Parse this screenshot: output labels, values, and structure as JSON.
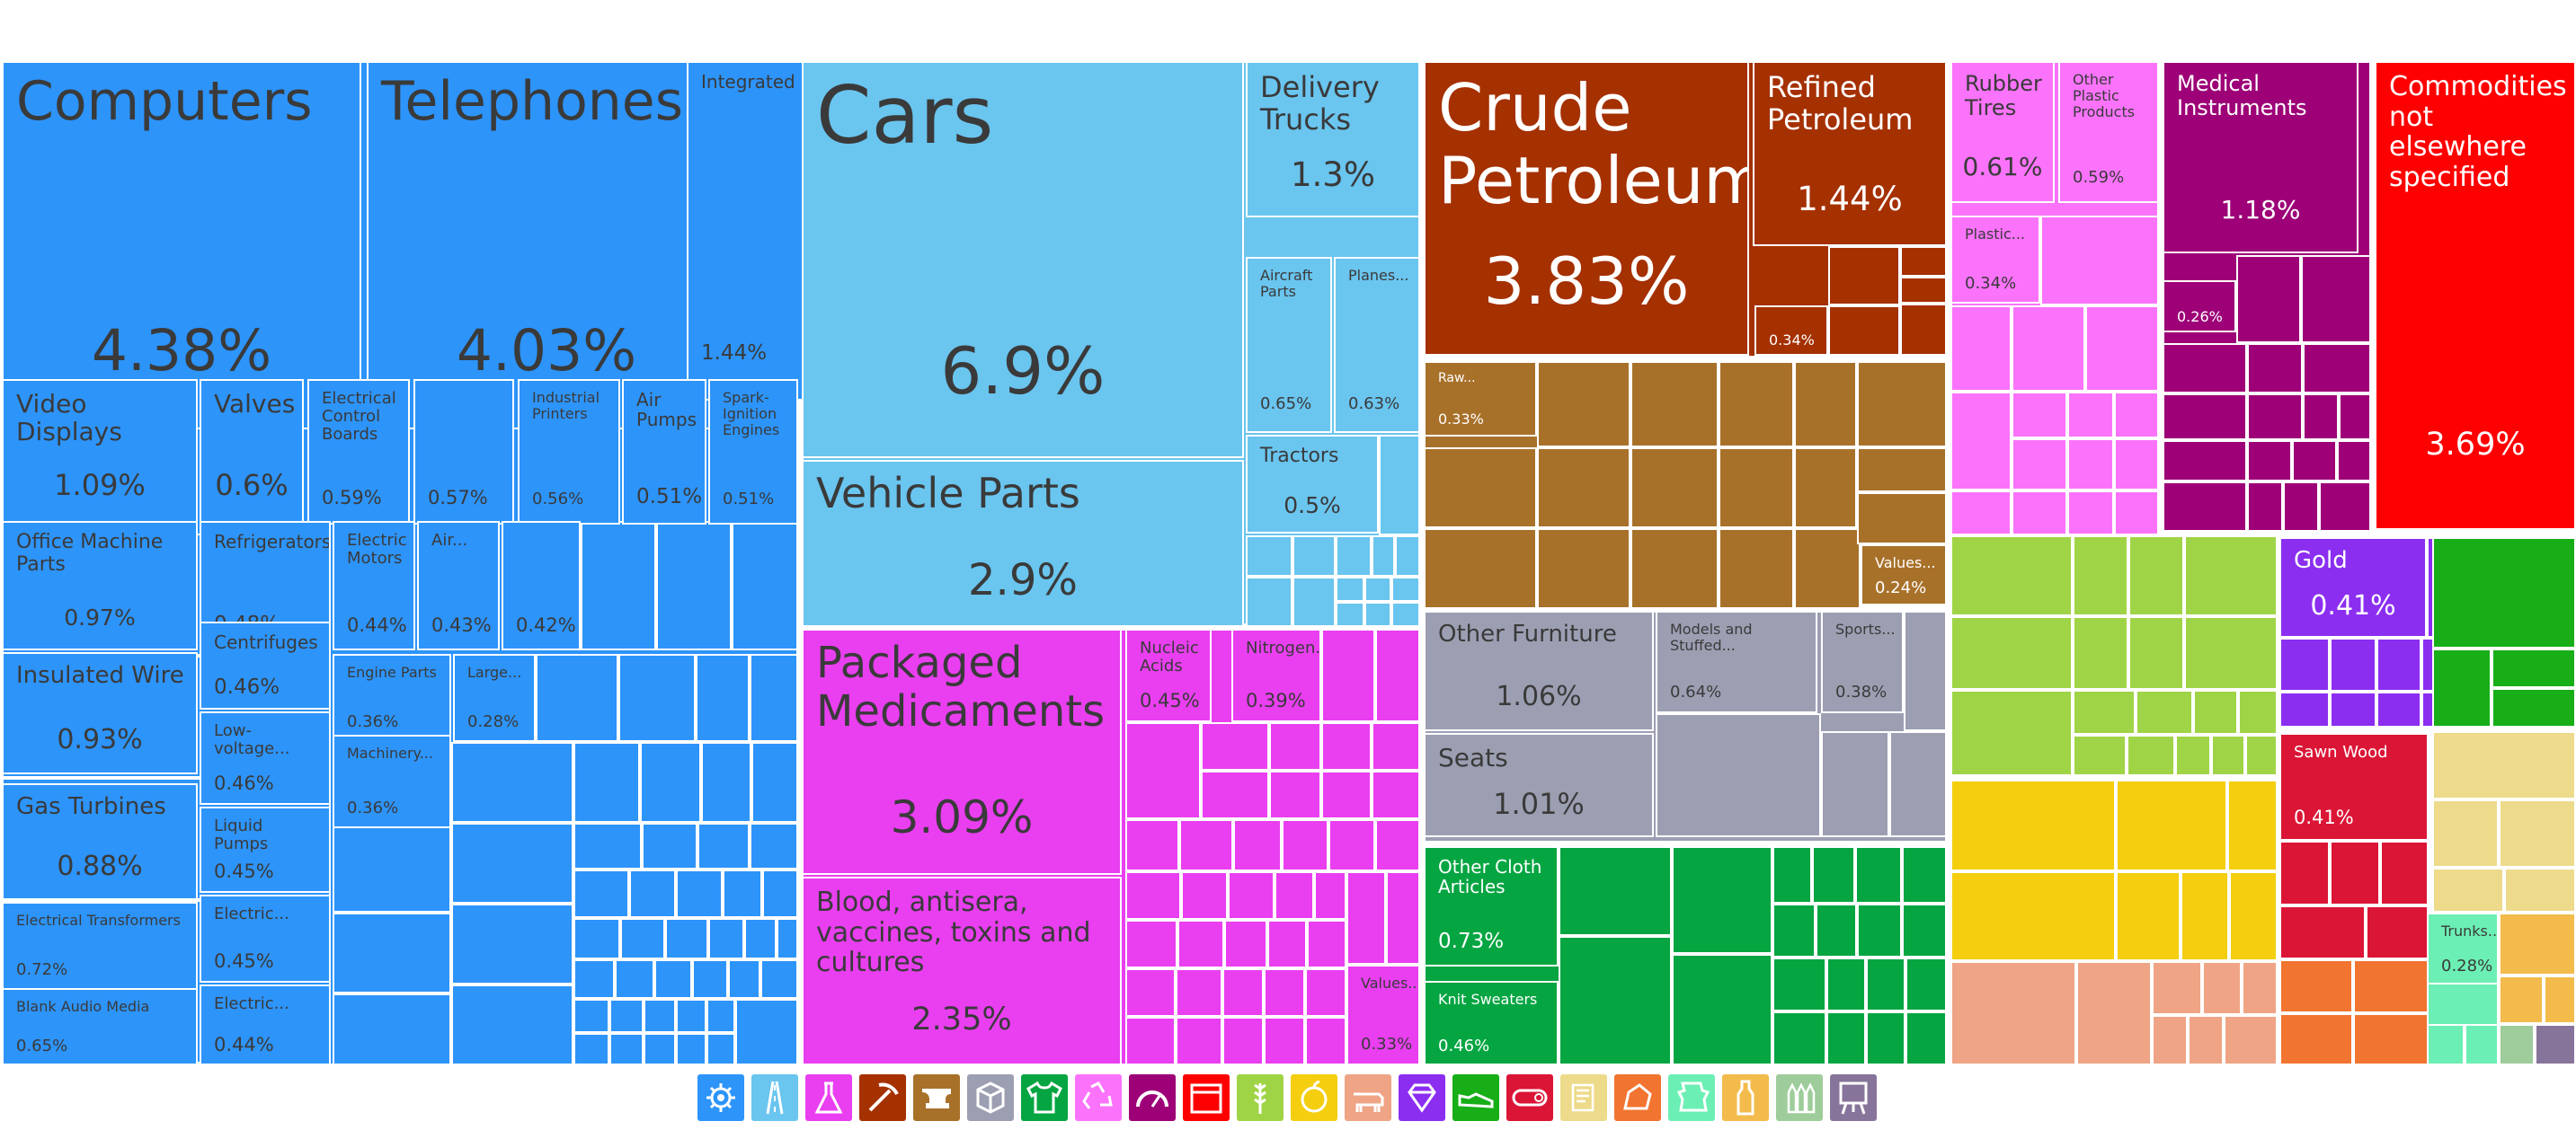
{
  "chart_data": {
    "type": "treemap",
    "unit": "%",
    "title": "",
    "sections": [
      {
        "key": "machines",
        "color": "#2d94fa",
        "icon": "gear-icon",
        "items": [
          {
            "label": "Computers",
            "value": 4.38
          },
          {
            "label": "Telephones",
            "value": 4.03
          },
          {
            "label": "Integrated Circuits",
            "value": 1.44
          },
          {
            "label": "Video Displays",
            "value": 1.09
          },
          {
            "label": "Valves",
            "value": 0.6
          },
          {
            "label": "Electrical Control Boards",
            "value": 0.59
          },
          {
            "label": "",
            "value": 0.57
          },
          {
            "label": "Industrial Printers",
            "value": 0.56
          },
          {
            "label": "Air Pumps",
            "value": 0.51
          },
          {
            "label": "Spark-Ignition Engines",
            "value": 0.51
          },
          {
            "label": "Office Machine Parts",
            "value": 0.97
          },
          {
            "label": "Refrigerators",
            "value": 0.48
          },
          {
            "label": "Electric Motors",
            "value": 0.44
          },
          {
            "label": "Air...",
            "value": 0.43
          },
          {
            "label": "",
            "value": 0.42
          },
          {
            "label": "Insulated Wire",
            "value": 0.93
          },
          {
            "label": "Centrifuges",
            "value": 0.46
          },
          {
            "label": "Engine Parts",
            "value": 0.36
          },
          {
            "label": "Large...",
            "value": 0.28
          },
          {
            "label": "Gas Turbines",
            "value": 0.88
          },
          {
            "label": "Low-voltage...",
            "value": 0.46
          },
          {
            "label": "Machinery...",
            "value": 0.36
          },
          {
            "label": "Liquid Pumps",
            "value": 0.45
          },
          {
            "label": "Electrical Transformers",
            "value": 0.72
          },
          {
            "label": "Electric...",
            "value": 0.45
          },
          {
            "label": "Blank Audio Media",
            "value": 0.65
          },
          {
            "label": "Electric...",
            "value": 0.44
          }
        ]
      },
      {
        "key": "transportation",
        "color": "#6ac5ef",
        "icon": "road-icon",
        "items": [
          {
            "label": "Cars",
            "value": 6.9
          },
          {
            "label": "Delivery Trucks",
            "value": 1.3
          },
          {
            "label": "Aircraft Parts",
            "value": 0.65
          },
          {
            "label": "Planes...",
            "value": 0.63
          },
          {
            "label": "Tractors",
            "value": 0.5
          },
          {
            "label": "Vehicle Parts",
            "value": 2.9
          }
        ]
      },
      {
        "key": "chemical-products",
        "color": "#e93ff0",
        "icon": "flask-icon",
        "items": [
          {
            "label": "Packaged Medicaments",
            "value": 3.09
          },
          {
            "label": "Nucleic Acids",
            "value": 0.45
          },
          {
            "label": "Nitrogen...",
            "value": 0.39
          },
          {
            "label": "Blood, antisera, vaccines, toxins and cultures",
            "value": 2.35
          },
          {
            "label": "Values...",
            "value": 0.33
          }
        ]
      },
      {
        "key": "mineral-products",
        "color": "#a53000",
        "icon": "pickaxe-icon",
        "items": [
          {
            "label": "Crude Petroleum",
            "value": 3.83
          },
          {
            "label": "Refined Petroleum",
            "value": 1.44
          },
          {
            "label": "",
            "value": 0.34
          }
        ]
      },
      {
        "key": "metals",
        "color": "#a8712a",
        "icon": "anvil-icon",
        "items": [
          {
            "label": "Raw...",
            "value": 0.33
          },
          {
            "label": "Values...",
            "value": 0.24
          }
        ]
      },
      {
        "key": "miscellaneous",
        "color": "#9c9fb2",
        "icon": "box-icon",
        "items": [
          {
            "label": "Other Furniture",
            "value": 1.06
          },
          {
            "label": "Models and Stuffed...",
            "value": 0.64
          },
          {
            "label": "Sports...",
            "value": 0.38
          },
          {
            "label": "Seats",
            "value": 1.01
          }
        ]
      },
      {
        "key": "textiles",
        "color": "#05a542",
        "icon": "shirt-icon",
        "items": [
          {
            "label": "Other Cloth Articles",
            "value": 0.73
          },
          {
            "label": "Knit Sweaters",
            "value": 0.46
          }
        ]
      },
      {
        "key": "plastics-and-rubbers",
        "color": "#fb73fb",
        "icon": "recycle-icon",
        "items": [
          {
            "label": "Rubber Tires",
            "value": 0.61
          },
          {
            "label": "Other Plastic Products",
            "value": 0.59
          },
          {
            "label": "Plastic...",
            "value": 0.34
          }
        ]
      },
      {
        "key": "instruments",
        "color": "#9d0077",
        "icon": "gauge-icon",
        "items": [
          {
            "label": "Medical Instruments",
            "value": 1.18
          },
          {
            "label": "",
            "value": 0.26
          }
        ]
      },
      {
        "key": "not-specified",
        "color": "#fe0000",
        "icon": "crate-icon",
        "items": [
          {
            "label": "Commodities not elsewhere specified",
            "value": 3.69
          }
        ]
      },
      {
        "key": "vegetable-products",
        "color": "#a0d447",
        "icon": "wheat-icon",
        "items": []
      },
      {
        "key": "foodstuffs",
        "color": "#f4ce0f",
        "icon": "fruit-icon",
        "items": []
      },
      {
        "key": "animal-products",
        "color": "#efa485",
        "icon": "animal-icon",
        "items": []
      },
      {
        "key": "precious-metals",
        "color": "#8b2ef0",
        "icon": "diamond-icon",
        "items": [
          {
            "label": "Gold",
            "value": 0.41
          }
        ]
      },
      {
        "key": "footwear-and-headwear",
        "color": "#17ae17",
        "icon": "shoe-icon",
        "items": []
      },
      {
        "key": "wood-products",
        "color": "#db1536",
        "icon": "log-icon",
        "items": [
          {
            "label": "Sawn Wood",
            "value": 0.41
          }
        ]
      },
      {
        "key": "paper-goods",
        "color": "#eddb8b",
        "icon": "scroll-icon",
        "items": []
      },
      {
        "key": "stone-and-glass",
        "color": "#f17430",
        "icon": "stone-icon",
        "items": []
      },
      {
        "key": "animal-hides",
        "color": "#6cefb4",
        "icon": "hide-icon",
        "items": [
          {
            "label": "Trunks...",
            "value": 0.28
          }
        ]
      },
      {
        "key": "animal-and-vegetable-bi-products",
        "color": "#f2bb4b",
        "icon": "bottle-icon",
        "items": []
      },
      {
        "key": "weapons",
        "color": "#9ecc9a",
        "icon": "bullets-icon",
        "items": []
      },
      {
        "key": "arts-and-antiques",
        "color": "#87749a",
        "icon": "easel-icon",
        "items": []
      }
    ]
  }
}
